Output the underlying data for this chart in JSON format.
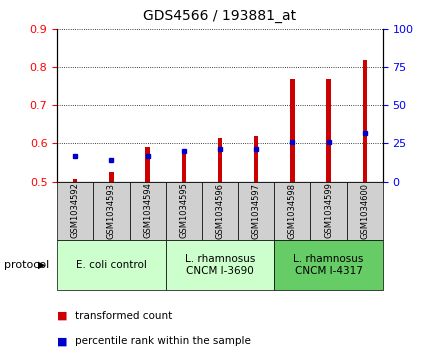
{
  "title": "GDS4566 / 193881_at",
  "samples": [
    "GSM1034592",
    "GSM1034593",
    "GSM1034594",
    "GSM1034595",
    "GSM1034596",
    "GSM1034597",
    "GSM1034598",
    "GSM1034599",
    "GSM1034600"
  ],
  "transformed_count": [
    0.507,
    0.525,
    0.59,
    0.584,
    0.615,
    0.62,
    0.77,
    0.768,
    0.82
  ],
  "percentile_rank": [
    17,
    14,
    17,
    20,
    21,
    21,
    26,
    26,
    32
  ],
  "ymin": 0.5,
  "ymax": 0.9,
  "y2min": 0,
  "y2max": 100,
  "bar_color": "#cc0000",
  "dot_color": "#0000cc",
  "bar_width": 0.12,
  "groups": [
    {
      "label": "E. coli control",
      "start": 0,
      "end": 3,
      "color": "#ccffcc"
    },
    {
      "label": "L. rhamnosus\nCNCM I-3690",
      "start": 3,
      "end": 6,
      "color": "#ccffcc"
    },
    {
      "label": "L. rhamnosus\nCNCM I-4317",
      "start": 6,
      "end": 9,
      "color": "#66cc66"
    }
  ],
  "legend_items": [
    {
      "label": "transformed count",
      "color": "#cc0000"
    },
    {
      "label": "percentile rank within the sample",
      "color": "#0000cc"
    }
  ],
  "protocol_label": "protocol",
  "yticks_left": [
    0.5,
    0.6,
    0.7,
    0.8,
    0.9
  ],
  "yticks_right": [
    0,
    25,
    50,
    75,
    100
  ],
  "xtick_bg": "#d0d0d0",
  "plot_bg": "#ffffff",
  "fig_bg": "#ffffff"
}
